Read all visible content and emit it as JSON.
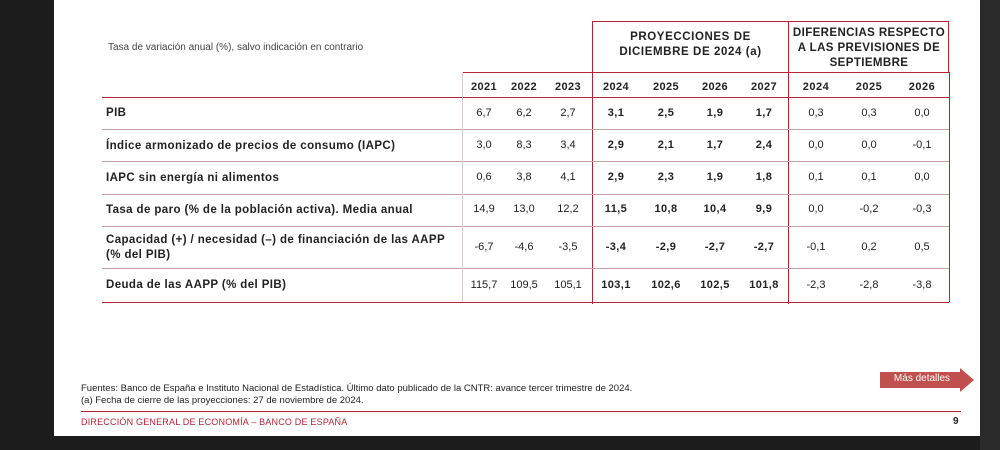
{
  "subtitle": "Tasa de variación anual (%), salvo indicación en contrario",
  "headers": {
    "projections": "PROYECCIONES DE DICIEMBRE DE 2024 (a)",
    "projections_line1": "PROYECCIONES DE",
    "projections_line2": "DICIEMBRE DE 2024 (a)",
    "differences_line1": "DIFERENCIAS RESPECTO",
    "differences_line2": "A LAS PREVISIONES DE",
    "differences_line3": "SEPTIEMBRE"
  },
  "years": {
    "historical": [
      "2021",
      "2022",
      "2023"
    ],
    "projections": [
      "2024",
      "2025",
      "2026",
      "2027"
    ],
    "differences": [
      "2024",
      "2025",
      "2026"
    ]
  },
  "rows": [
    {
      "label": "PIB",
      "label2": "",
      "hist": [
        "6,7",
        "6,2",
        "2,7"
      ],
      "proj": [
        "3,1",
        "2,5",
        "1,9",
        "1,7"
      ],
      "diff": [
        "0,3",
        "0,3",
        "0,0"
      ]
    },
    {
      "label": "Índice armonizado de precios de consumo (IAPC)",
      "label2": "",
      "hist": [
        "3,0",
        "8,3",
        "3,4"
      ],
      "proj": [
        "2,9",
        "2,1",
        "1,7",
        "2,4"
      ],
      "diff": [
        "0,0",
        "0,0",
        "-0,1"
      ]
    },
    {
      "label": "IAPC sin energía ni alimentos",
      "label2": "",
      "hist": [
        "0,6",
        "3,8",
        "4,1"
      ],
      "proj": [
        "2,9",
        "2,3",
        "1,9",
        "1,8"
      ],
      "diff": [
        "0,1",
        "0,1",
        "0,0"
      ]
    },
    {
      "label": "Tasa de paro (% de la población activa). Media anual",
      "label2": "",
      "hist": [
        "14,9",
        "13,0",
        "12,2"
      ],
      "proj": [
        "11,5",
        "10,8",
        "10,4",
        "9,9"
      ],
      "diff": [
        "0,0",
        "-0,2",
        "-0,3"
      ]
    },
    {
      "label": "Capacidad (+) / necesidad (–) de financiación de las AAPP",
      "label2": "(% del PIB)",
      "hist": [
        "-6,7",
        "-4,6",
        "-3,5"
      ],
      "proj": [
        "-3,4",
        "-2,9",
        "-2,7",
        "-2,7"
      ],
      "diff": [
        "-0,1",
        "0,2",
        "0,5"
      ]
    },
    {
      "label": "Deuda de las AAPP (% del PIB)",
      "label2": "",
      "hist": [
        "115,7",
        "109,5",
        "105,1"
      ],
      "proj": [
        "103,1",
        "102,6",
        "102,5",
        "101,8"
      ],
      "diff": [
        "-2,3",
        "-2,8",
        "-3,8"
      ]
    }
  ],
  "footnotes": {
    "sources": "Fuentes: Banco de España e Instituto Nacional de Estadística. Último dato publicado de la CNTR: avance tercer trimestre de 2024.",
    "note_a": "(a) Fecha de cierre de las proyecciones: 27 de noviembre de 2024."
  },
  "more_button": "Más detalles",
  "footer": "DIRECCIÓN GENERAL DE ECONOMÍA – BANCO DE ESPAÑA",
  "page_number": "9",
  "colors": {
    "accent": "#b42535",
    "button": "#c0504d"
  }
}
